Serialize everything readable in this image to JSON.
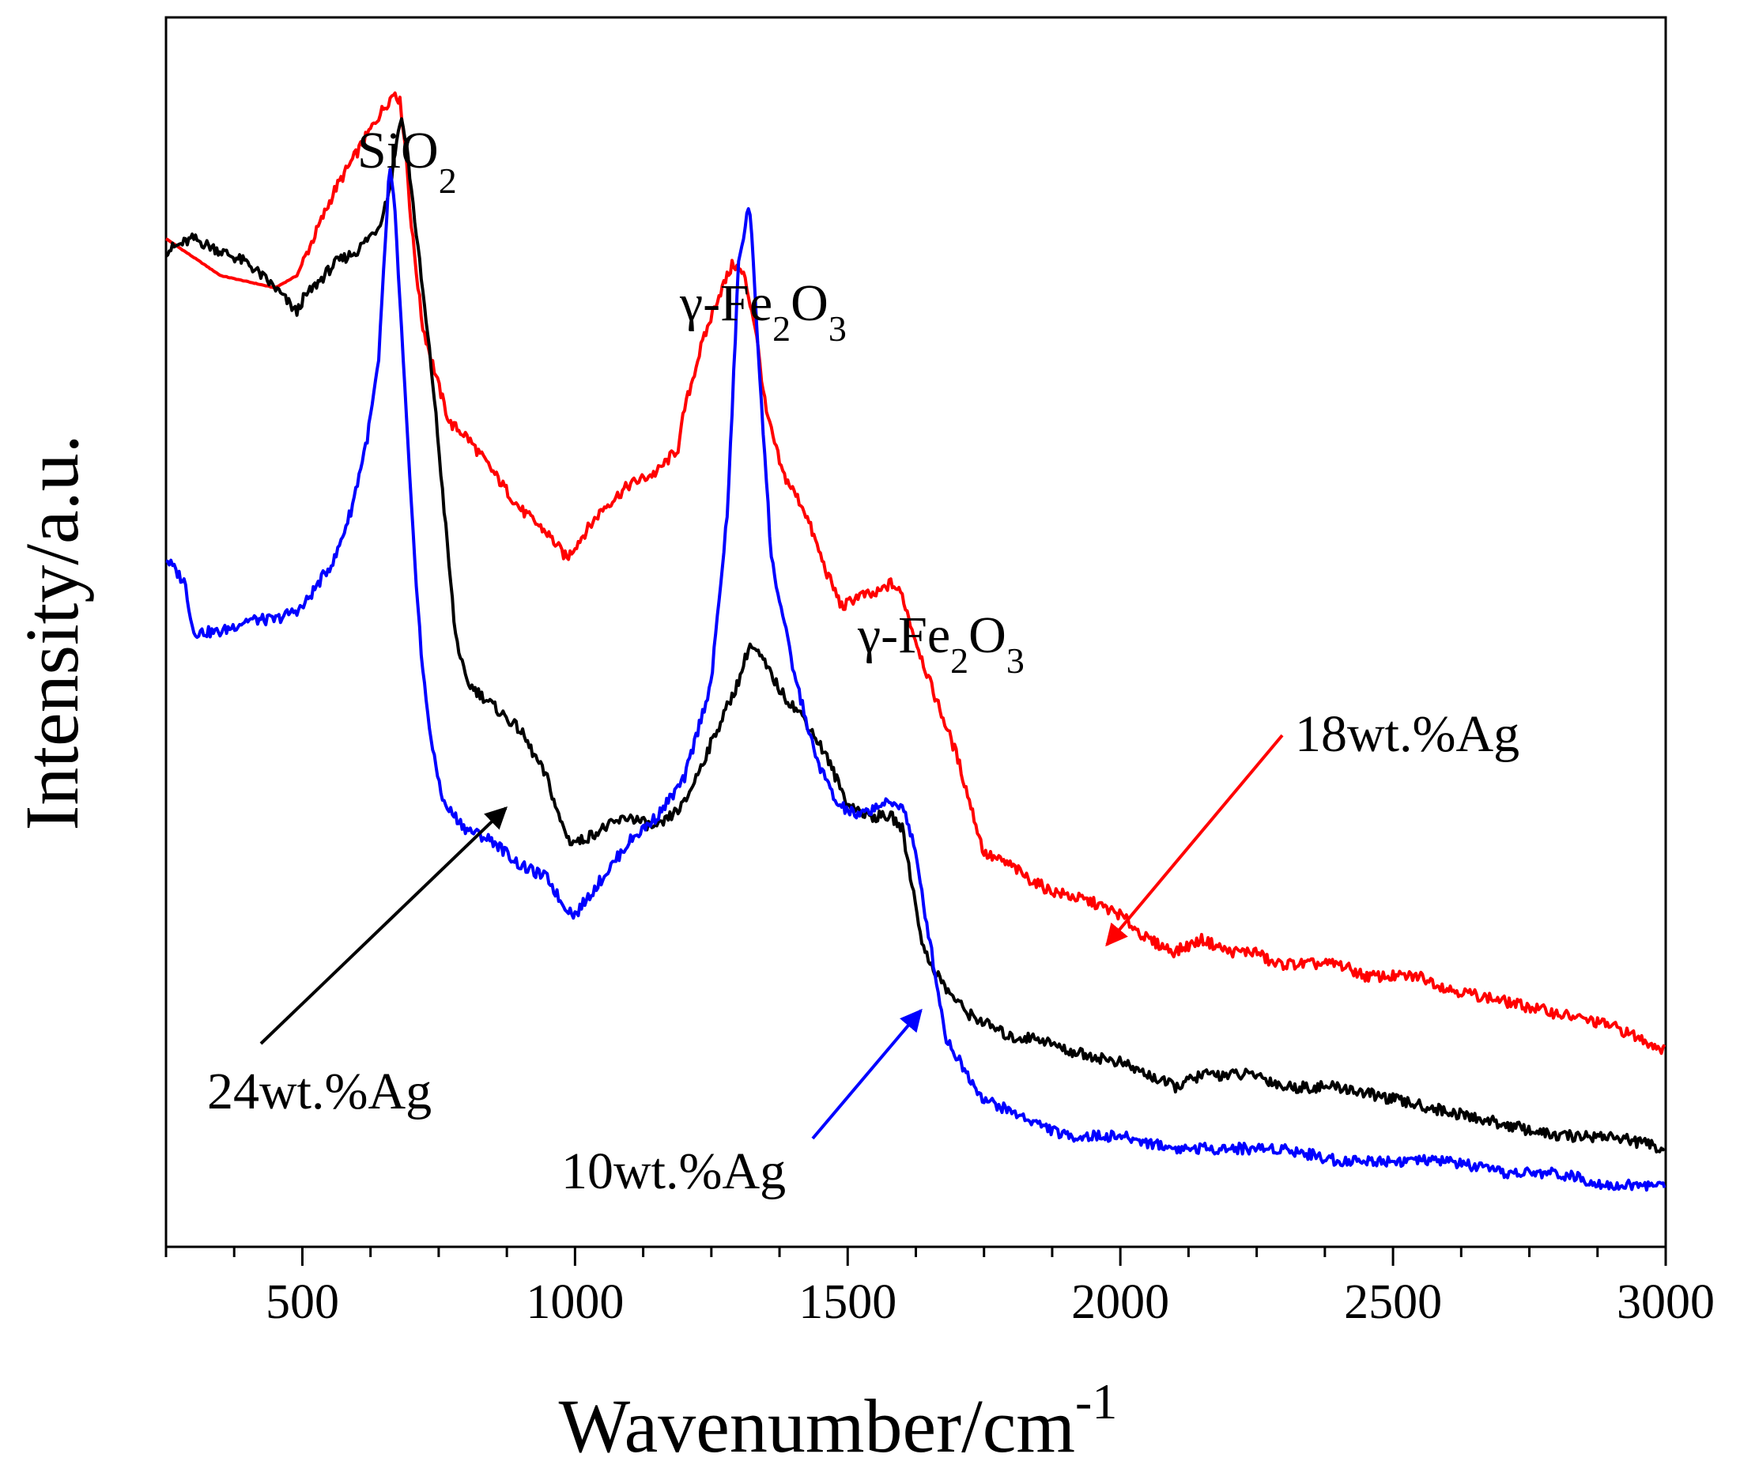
{
  "chart_data": {
    "type": "line",
    "xlabel": "Wavenumber/cm",
    "xlabel_sup": "-1",
    "ylabel": "Intensity/a.u.",
    "xlim": [
      250,
      3000
    ],
    "ylim": [
      0,
      100
    ],
    "xticks": [
      500,
      1000,
      1500,
      2000,
      2500,
      3000
    ],
    "xtick_labels": [
      "500",
      "1000",
      "1500",
      "2000",
      "2500",
      "3000"
    ],
    "y_ticks_shown": false,
    "series": [
      {
        "name": "18wt.%Ag",
        "color": "#ff0000",
        "x": [
          250,
          350,
          450,
          490,
          520,
          560,
          600,
          640,
          670,
          680,
          690,
          700,
          720,
          750,
          770,
          800,
          850,
          900,
          950,
          985,
          1000,
          1050,
          1100,
          1150,
          1190,
          1200,
          1230,
          1260,
          1290,
          1310,
          1330,
          1350,
          1380,
          1420,
          1460,
          1490,
          1520,
          1550,
          1580,
          1600,
          1620,
          1650,
          1700,
          1750,
          1800,
          1830,
          1870,
          1950,
          2000,
          2050,
          2100,
          2150,
          2200,
          2250,
          2280,
          2350,
          2400,
          2450,
          2500,
          2550,
          2600,
          2700,
          2800,
          2900,
          3000
        ],
        "y": [
          82,
          79,
          78,
          79,
          82,
          86,
          89,
          92,
          94,
          93,
          89,
          83,
          75,
          70,
          67,
          66,
          63,
          60,
          58,
          56,
          57,
          60,
          62,
          63,
          65,
          68,
          73,
          77,
          80,
          79,
          75,
          68,
          63,
          60,
          55,
          52,
          53,
          53,
          54,
          53,
          50,
          46,
          40,
          32,
          31,
          30,
          29,
          28,
          27,
          25,
          24,
          25,
          24,
          24,
          23,
          23,
          23,
          22,
          22,
          22,
          21,
          20,
          19,
          18,
          16
        ]
      },
      {
        "name": "24wt.%Ag",
        "color": "#000000",
        "x": [
          250,
          300,
          350,
          400,
          450,
          490,
          500,
          520,
          560,
          600,
          640,
          660,
          680,
          690,
          700,
          720,
          740,
          760,
          780,
          800,
          850,
          900,
          950,
          970,
          990,
          1010,
          1050,
          1100,
          1150,
          1200,
          1240,
          1280,
          1300,
          1320,
          1340,
          1380,
          1420,
          1460,
          1500,
          1540,
          1580,
          1600,
          1620,
          1640,
          1680,
          1720,
          1760,
          1800,
          1850,
          1900,
          2000,
          2050,
          2100,
          2150,
          2200,
          2250,
          2300,
          2400,
          2500,
          2600,
          2700,
          2800,
          2900,
          3000
        ],
        "y": [
          81,
          82,
          81,
          80,
          78,
          76,
          77,
          78,
          80,
          81,
          83,
          86,
          92,
          90,
          86,
          78,
          70,
          60,
          50,
          46,
          44,
          42,
          38,
          35,
          33,
          33,
          34,
          35,
          34,
          36,
          40,
          44,
          46,
          49,
          48,
          45,
          43,
          40,
          36,
          35,
          35,
          34,
          29,
          24,
          21,
          19,
          18,
          17,
          17,
          16,
          15,
          14,
          13,
          14,
          14,
          14,
          13,
          13,
          12,
          11,
          10,
          9,
          9,
          8
        ]
      },
      {
        "name": "10wt.%Ag",
        "color": "#0000ff",
        "x": [
          250,
          285,
          300,
          350,
          400,
          450,
          500,
          530,
          560,
          590,
          610,
          620,
          640,
          660,
          670,
          680,
          700,
          720,
          740,
          760,
          780,
          800,
          850,
          900,
          950,
          975,
          1000,
          1050,
          1100,
          1150,
          1200,
          1250,
          1280,
          1300,
          1320,
          1340,
          1360,
          1400,
          1440,
          1480,
          1520,
          1560,
          1600,
          1620,
          1650,
          1680,
          1720,
          1750,
          1800,
          1850,
          1900,
          2000,
          2100,
          2200,
          2300,
          2400,
          2500,
          2600,
          2700,
          2800,
          2900,
          3000
        ],
        "y": [
          56,
          54,
          50,
          50,
          51,
          51,
          52,
          54,
          56,
          60,
          64,
          66,
          72,
          88,
          84,
          76,
          60,
          47,
          40,
          36,
          35,
          34,
          33,
          31,
          30,
          28,
          27,
          30,
          33,
          35,
          38,
          46,
          60,
          80,
          85,
          70,
          56,
          47,
          40,
          36,
          35,
          36,
          36,
          33,
          25,
          17,
          14,
          12,
          11,
          10,
          9,
          9,
          8,
          8,
          8,
          7,
          7,
          7,
          6,
          6,
          5,
          5
        ]
      }
    ],
    "annotations": [
      {
        "label": "SiO",
        "sub": "2"
      },
      {
        "label": "γ-Fe",
        "sub": "2",
        "label2": "O",
        "sub2": "3"
      },
      {
        "label": "γ-Fe",
        "sub": "2",
        "label2": "O",
        "sub2": "3"
      },
      {
        "label": "18wt.%Ag",
        "color": "#ff0000"
      },
      {
        "label": "24wt.%Ag",
        "color": "#000000"
      },
      {
        "label": "10wt.%Ag",
        "color": "#0000ff"
      }
    ]
  }
}
